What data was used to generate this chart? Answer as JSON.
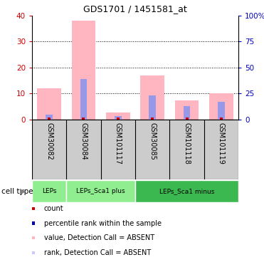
{
  "title": "GDS1701 / 1451581_at",
  "samples": [
    "GSM30082",
    "GSM30084",
    "GSM101117",
    "GSM30085",
    "GSM101118",
    "GSM101119"
  ],
  "pink_bar_top": [
    12,
    38,
    2.8,
    17,
    7.5,
    10
  ],
  "blue_bar_values": [
    2.0,
    15.5,
    1.3,
    9.2,
    5.2,
    6.8
  ],
  "red_marker_values": [
    0.2,
    0.2,
    0.2,
    0.2,
    0.2,
    0.2
  ],
  "ylim_left": [
    0,
    40
  ],
  "ylim_right": [
    0,
    100
  ],
  "yticks_left": [
    0,
    10,
    20,
    30,
    40
  ],
  "yticks_right": [
    0,
    25,
    50,
    75,
    100
  ],
  "ytick_labels_left": [
    "0",
    "10",
    "20",
    "30",
    "40"
  ],
  "ytick_labels_right": [
    "0",
    "25",
    "50",
    "75",
    "100%"
  ],
  "cell_type_groups": [
    {
      "label": "LEPs",
      "cols": [
        0,
        0
      ],
      "color": "#90EE90"
    },
    {
      "label": "LEPs_Sca1 plus",
      "cols": [
        1,
        2
      ],
      "color": "#90EE90"
    },
    {
      "label": "LEPs_Sca1 minus",
      "cols": [
        3,
        5
      ],
      "color": "#3CB850"
    }
  ],
  "legend_items": [
    {
      "color": "#CC0000",
      "label": "count"
    },
    {
      "color": "#0000BB",
      "label": "percentile rank within the sample"
    },
    {
      "color": "#FFB6C1",
      "label": "value, Detection Call = ABSENT"
    },
    {
      "color": "#C8C8FF",
      "label": "rank, Detection Call = ABSENT"
    }
  ],
  "bar_color_pink": "#FFB6C1",
  "bar_color_blue": "#9898E8",
  "bar_color_red": "#CC0000",
  "left_yaxis_color": "#CC0000",
  "right_yaxis_color": "#0000BB",
  "bg_xlabels": "#CCCCCC",
  "bg_celltype_light": "#90EE90",
  "bg_celltype_strong": "#3CB850"
}
